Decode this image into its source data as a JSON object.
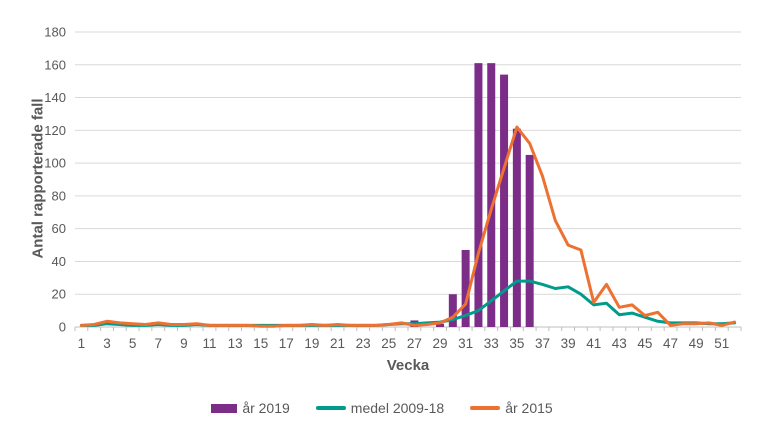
{
  "chart_data": {
    "type": "bar",
    "combo": "bar+line",
    "title": "",
    "xlabel": "Vecka",
    "ylabel": "Antal rapporterade fall",
    "ylim": [
      0,
      180
    ],
    "y_ticks": [
      0,
      20,
      40,
      60,
      80,
      100,
      120,
      140,
      160,
      180
    ],
    "x": [
      1,
      2,
      3,
      4,
      5,
      6,
      7,
      8,
      9,
      10,
      11,
      12,
      13,
      14,
      15,
      16,
      17,
      18,
      19,
      20,
      21,
      22,
      23,
      24,
      25,
      26,
      27,
      28,
      29,
      30,
      31,
      32,
      33,
      34,
      35,
      36,
      37,
      38,
      39,
      40,
      41,
      42,
      43,
      44,
      45,
      46,
      47,
      48,
      49,
      50,
      51,
      52
    ],
    "x_tick_labels": [
      1,
      3,
      5,
      7,
      9,
      11,
      13,
      15,
      17,
      19,
      21,
      23,
      25,
      27,
      29,
      31,
      33,
      35,
      37,
      39,
      41,
      43,
      45,
      47,
      49,
      51
    ],
    "grid": "horizontal",
    "grid_color": "#D9D9D9",
    "axis_line_color": "#BFBFBF",
    "axis_text_color": "#595959",
    "legend_position": "bottom-center",
    "series": [
      {
        "name": "år 2019",
        "type": "bar",
        "color": "#7B2D88",
        "values": [
          0,
          0,
          0,
          0,
          0,
          0,
          0,
          0,
          0,
          0,
          0,
          0,
          0,
          0,
          0,
          0,
          0,
          0,
          0,
          0,
          0,
          0,
          0,
          0,
          0,
          0,
          4,
          0,
          2,
          20,
          47,
          161,
          161,
          154,
          121,
          105,
          0,
          0,
          0,
          0,
          0,
          0,
          0,
          0,
          0,
          0,
          0,
          0,
          0,
          0,
          0,
          0
        ]
      },
      {
        "name": "medel 2009-18",
        "type": "line",
        "color": "#009B8A",
        "values": [
          1,
          1,
          2,
          1.5,
          1,
          1,
          1.5,
          1,
          1,
          1.5,
          1,
          1,
          1,
          1,
          1,
          1,
          1,
          1,
          1,
          1,
          1,
          1,
          1,
          1,
          1.5,
          2,
          2,
          2.5,
          3,
          4.5,
          7,
          10,
          16,
          22,
          28,
          28,
          26,
          23.5,
          24.5,
          20,
          13.5,
          14.5,
          7.5,
          8.5,
          6,
          3.5,
          2.5,
          2.5,
          2.5,
          2,
          2,
          2.5
        ]
      },
      {
        "name": "år 2015",
        "type": "line",
        "color": "#ED7131",
        "values": [
          1,
          1.5,
          3.5,
          2.5,
          2,
          1.5,
          2.5,
          1.5,
          1.5,
          2,
          1,
          1,
          1,
          1,
          0.5,
          0.5,
          1,
          1,
          1.5,
          1,
          1.5,
          1,
          1,
          1,
          1.5,
          2.5,
          1,
          1.5,
          2.5,
          6,
          14,
          45,
          72,
          97,
          122,
          112,
          92,
          65,
          50,
          47,
          15,
          26,
          12,
          13.5,
          7,
          9,
          1,
          2,
          2,
          2.5,
          1,
          3
        ]
      }
    ]
  }
}
